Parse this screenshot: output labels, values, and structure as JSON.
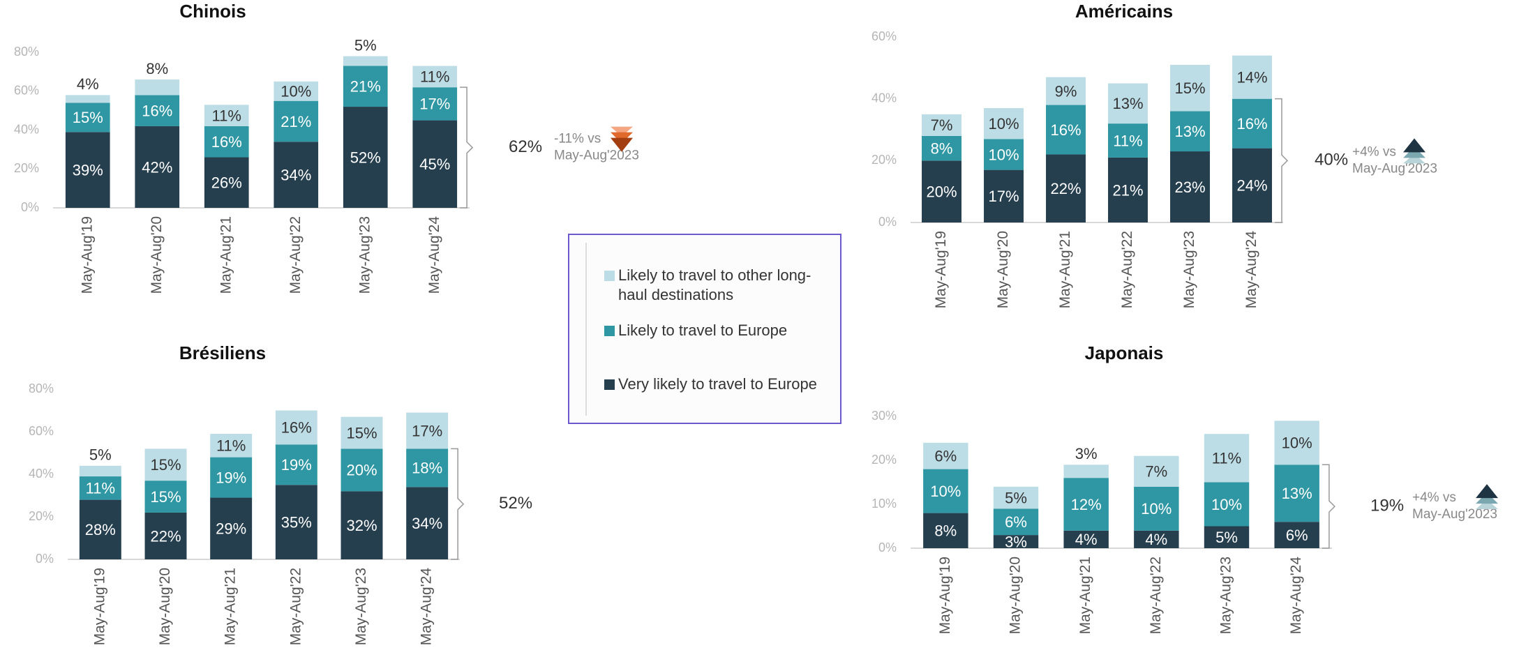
{
  "legend": {
    "items": [
      {
        "name": [
          "Likely to travel to other long-",
          "haul destinations"
        ],
        "color": "#bddde6"
      },
      {
        "name": [
          "Likely to travel to Europe"
        ],
        "color": "#2e97a3"
      },
      {
        "name": [
          "Very likely to travel to Europe"
        ],
        "color": "#263f4f"
      }
    ]
  },
  "chart_data": [
    {
      "type": "bar",
      "stacked": true,
      "title": "Chinois",
      "categories": [
        "May-Aug'19",
        "May-Aug'20",
        "May-Aug'21",
        "May-Aug'22",
        "May-Aug'23",
        "May-Aug'24"
      ],
      "series": [
        {
          "color": "#263f4f",
          "values": [
            39,
            42,
            26,
            34,
            52,
            45
          ],
          "value_labels": [
            "39%",
            "42%",
            "26%",
            "34%",
            "52%",
            "45%"
          ]
        },
        {
          "color": "#2e97a3",
          "values": [
            15,
            16,
            16,
            21,
            21,
            17
          ],
          "value_labels": [
            "15%",
            "16%",
            "16%",
            "21%",
            "21%",
            "17%"
          ]
        },
        {
          "color": "#bddde6",
          "values": [
            4,
            8,
            11,
            10,
            5,
            11
          ],
          "value_labels": [
            "4%",
            "8%",
            "11%",
            "10%",
            "5%",
            "11%"
          ]
        }
      ],
      "ylim": [
        0,
        80
      ],
      "yticks": [
        {
          "value": 0,
          "label": "0%"
        },
        {
          "value": 20,
          "label": "20%"
        },
        {
          "value": 40,
          "label": "40%"
        },
        {
          "value": 60,
          "label": "60%"
        },
        {
          "value": 80,
          "label": "80%"
        }
      ],
      "total_label": "62%",
      "change_note": [
        "-11% vs",
        "May-Aug'2023"
      ],
      "change_direction": "down"
    },
    {
      "type": "bar",
      "stacked": true,
      "title": "Américains",
      "categories": [
        "May-Aug'19",
        "May-Aug'20",
        "May-Aug'21",
        "May-Aug'22",
        "May-Aug'23",
        "May-Aug'24"
      ],
      "series": [
        {
          "color": "#263f4f",
          "values": [
            20,
            17,
            22,
            21,
            23,
            24
          ],
          "value_labels": [
            "20%",
            "17%",
            "22%",
            "21%",
            "23%",
            "24%"
          ]
        },
        {
          "color": "#2e97a3",
          "values": [
            8,
            10,
            16,
            11,
            13,
            16
          ],
          "value_labels": [
            "8%",
            "10%",
            "16%",
            "11%",
            "13%",
            "16%"
          ]
        },
        {
          "color": "#bddde6",
          "values": [
            7,
            10,
            9,
            13,
            15,
            14
          ],
          "value_labels": [
            "7%",
            "10%",
            "9%",
            "13%",
            "15%",
            "14%"
          ]
        }
      ],
      "ylim": [
        0,
        60
      ],
      "yticks": [
        {
          "value": 0,
          "label": "0%"
        },
        {
          "value": 20,
          "label": "20%"
        },
        {
          "value": 40,
          "label": "40%"
        },
        {
          "value": 60,
          "label": "60%"
        }
      ],
      "total_label": "40%",
      "change_note": [
        "+4% vs",
        "May-Aug'2023"
      ],
      "change_direction": "up"
    },
    {
      "type": "bar",
      "stacked": true,
      "title": "Brésiliens",
      "categories": [
        "May-Aug'19",
        "May-Aug'20",
        "May-Aug'21",
        "May-Aug'22",
        "May-Aug'23",
        "May-Aug'24"
      ],
      "series": [
        {
          "color": "#263f4f",
          "values": [
            28,
            22,
            29,
            35,
            32,
            34
          ],
          "value_labels": [
            "28%",
            "22%",
            "29%",
            "35%",
            "32%",
            "34%"
          ]
        },
        {
          "color": "#2e97a3",
          "values": [
            11,
            15,
            19,
            19,
            20,
            18
          ],
          "value_labels": [
            "11%",
            "15%",
            "19%",
            "19%",
            "20%",
            "18%"
          ]
        },
        {
          "color": "#bddde6",
          "values": [
            5,
            15,
            11,
            16,
            15,
            17
          ],
          "value_labels": [
            "5%",
            "15%",
            "11%",
            "16%",
            "15%",
            "17%"
          ]
        }
      ],
      "ylim": [
        0,
        80
      ],
      "yticks": [
        {
          "value": 0,
          "label": "0%"
        },
        {
          "value": 20,
          "label": "20%"
        },
        {
          "value": 40,
          "label": "40%"
        },
        {
          "value": 60,
          "label": "60%"
        },
        {
          "value": 80,
          "label": "80%"
        }
      ],
      "total_label": "52%"
    },
    {
      "type": "bar",
      "stacked": true,
      "title": "Japonais",
      "categories": [
        "May-Aug'19",
        "May-Aug'20",
        "May-Aug'21",
        "May-Aug'22",
        "May-Aug'23",
        "May-Aug'24"
      ],
      "series": [
        {
          "color": "#263f4f",
          "values": [
            8,
            3,
            4,
            4,
            5,
            6
          ],
          "value_labels": [
            "8%",
            "3%",
            "4%",
            "4%",
            "5%",
            "6%"
          ]
        },
        {
          "color": "#2e97a3",
          "values": [
            10,
            6,
            12,
            10,
            10,
            13
          ],
          "value_labels": [
            "10%",
            "6%",
            "12%",
            "10%",
            "10%",
            "13%"
          ]
        },
        {
          "color": "#bddde6",
          "values": [
            6,
            5,
            3,
            7,
            11,
            10
          ],
          "value_labels": [
            "6%",
            "5%",
            "3%",
            "7%",
            "11%",
            "10%"
          ]
        }
      ],
      "ylim": [
        0,
        30
      ],
      "yticks": [
        {
          "value": 0,
          "label": "0%"
        },
        {
          "value": 10,
          "label": "10%"
        },
        {
          "value": 20,
          "label": "20%"
        },
        {
          "value": 30,
          "label": "30%"
        }
      ],
      "total_label": "19%",
      "change_note": [
        "+4% vs",
        "May-Aug'2023"
      ],
      "change_direction": "up"
    }
  ]
}
